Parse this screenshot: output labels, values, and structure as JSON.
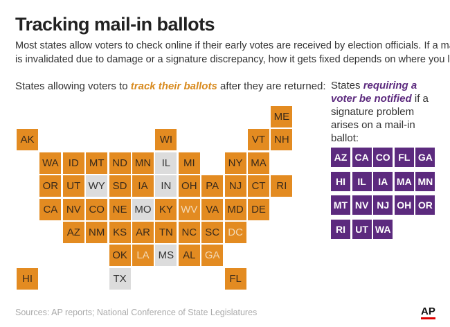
{
  "header": {
    "title": "Tracking mail-in ballots",
    "subtitle": [
      "Most states allow voters to check online if their early votes are received by election officials. If a mail-in ballot",
      "is invalidated due to damage or a signature discrepancy, how it gets fixed depends on where you live."
    ]
  },
  "tracking_map": {
    "heading": {
      "before": "States allowing voters to ",
      "emphasis": "track their ballots",
      "after": " after they are returned:"
    },
    "tiles": [
      {
        "label": "ME",
        "color": "#e38b21",
        "text_color": "#3a2a1a"
      },
      {
        "label": "AK",
        "color": "#e38b21",
        "text_color": "#3a2a1a"
      },
      {
        "label": "WI",
        "color": "#e38b21",
        "text_color": "#3a2a1a"
      },
      {
        "label": "VT",
        "color": "#e38b21",
        "text_color": "#3a2a1a"
      },
      {
        "label": "NH",
        "color": "#e38b21",
        "text_color": "#3a2a1a"
      },
      {
        "label": "WA",
        "color": "#e38b21",
        "text_color": "#3a2a1a"
      },
      {
        "label": "ID",
        "color": "#e38b21",
        "text_color": "#3a2a1a"
      },
      {
        "label": "MT",
        "color": "#e38b21",
        "text_color": "#3a2a1a"
      },
      {
        "label": "ND",
        "color": "#e38b21",
        "text_color": "#3a2a1a"
      },
      {
        "label": "MN",
        "color": "#e38b21",
        "text_color": "#3a2a1a"
      },
      {
        "label": "IL",
        "color": "#dcdcdc",
        "text_color": "#333333"
      },
      {
        "label": "MI",
        "color": "#e38b21",
        "text_color": "#3a2a1a"
      },
      {
        "label": "NY",
        "color": "#e38b21",
        "text_color": "#3a2a1a"
      },
      {
        "label": "MA",
        "color": "#e38b21",
        "text_color": "#3a2a1a"
      },
      {
        "label": "OR",
        "color": "#e38b21",
        "text_color": "#3a2a1a"
      },
      {
        "label": "UT",
        "color": "#e38b21",
        "text_color": "#3a2a1a"
      },
      {
        "label": "WY",
        "color": "#dcdcdc",
        "text_color": "#333333"
      },
      {
        "label": "SD",
        "color": "#e38b21",
        "text_color": "#3a2a1a"
      },
      {
        "label": "IA",
        "color": "#e38b21",
        "text_color": "#3a2a1a"
      },
      {
        "label": "IN",
        "color": "#dcdcdc",
        "text_color": "#333333"
      },
      {
        "label": "OH",
        "color": "#e38b21",
        "text_color": "#3a2a1a"
      },
      {
        "label": "PA",
        "color": "#e38b21",
        "text_color": "#3a2a1a"
      },
      {
        "label": "NJ",
        "color": "#e38b21",
        "text_color": "#3a2a1a"
      },
      {
        "label": "CT",
        "color": "#e38b21",
        "text_color": "#3a2a1a"
      },
      {
        "label": "RI",
        "color": "#e38b21",
        "text_color": "#3a2a1a"
      },
      {
        "label": "CA",
        "color": "#e38b21",
        "text_color": "#3a2a1a"
      },
      {
        "label": "NV",
        "color": "#e38b21",
        "text_color": "#3a2a1a"
      },
      {
        "label": "CO",
        "color": "#e38b21",
        "text_color": "#3a2a1a"
      },
      {
        "label": "NE",
        "color": "#e38b21",
        "text_color": "#3a2a1a"
      },
      {
        "label": "MO",
        "color": "#dcdcdc",
        "text_color": "#333333"
      },
      {
        "label": "KY",
        "color": "#e38b21",
        "text_color": "#3a2a1a"
      },
      {
        "label": "WV",
        "color": "#e38b21",
        "text_color": "#f3d9b5"
      },
      {
        "label": "VA",
        "color": "#e38b21",
        "text_color": "#3a2a1a"
      },
      {
        "label": "MD",
        "color": "#e38b21",
        "text_color": "#3a2a1a"
      },
      {
        "label": "DE",
        "color": "#e38b21",
        "text_color": "#3a2a1a"
      },
      {
        "label": "AZ",
        "color": "#e38b21",
        "text_color": "#3a2a1a"
      },
      {
        "label": "NM",
        "color": "#e38b21",
        "text_color": "#3a2a1a"
      },
      {
        "label": "KS",
        "color": "#e38b21",
        "text_color": "#3a2a1a"
      },
      {
        "label": "AR",
        "color": "#e38b21",
        "text_color": "#3a2a1a"
      },
      {
        "label": "TN",
        "color": "#e38b21",
        "text_color": "#3a2a1a"
      },
      {
        "label": "NC",
        "color": "#e38b21",
        "text_color": "#3a2a1a"
      },
      {
        "label": "SC",
        "color": "#e38b21",
        "text_color": "#3a2a1a"
      },
      {
        "label": "DC",
        "color": "#e38b21",
        "text_color": "#f3d9b5"
      },
      {
        "label": "OK",
        "color": "#e38b21",
        "text_color": "#3a2a1a"
      },
      {
        "label": "LA",
        "color": "#e38b21",
        "text_color": "#f3d9b5"
      },
      {
        "label": "MS",
        "color": "#dcdcdc",
        "text_color": "#333333"
      },
      {
        "label": "AL",
        "color": "#e38b21",
        "text_color": "#3a2a1a"
      },
      {
        "label": "GA",
        "color": "#e38b21",
        "text_color": "#f3d9b5"
      },
      {
        "label": "HI",
        "color": "#e38b21",
        "text_color": "#3a2a1a"
      },
      {
        "label": "TX",
        "color": "#dcdcdc",
        "text_color": "#333333"
      },
      {
        "label": "FL",
        "color": "#e38b21",
        "text_color": "#3a2a1a"
      }
    ]
  },
  "notification": {
    "heading": {
      "before": "States ",
      "emphasis": "requiring a voter be notified",
      "after": " if a signature problem arises on a mail-in ballot:"
    },
    "color": "#5c2a7e",
    "states": [
      "AZ",
      "CA",
      "CO",
      "FL",
      "GA",
      "HI",
      "IL",
      "IA",
      "MA",
      "MN",
      "MT",
      "NV",
      "NJ",
      "OH",
      "OR",
      "RI",
      "UT",
      "WA"
    ]
  },
  "footer": {
    "source": "Sources: AP reports; National Conference of State Legislatures",
    "logo": "AP"
  }
}
